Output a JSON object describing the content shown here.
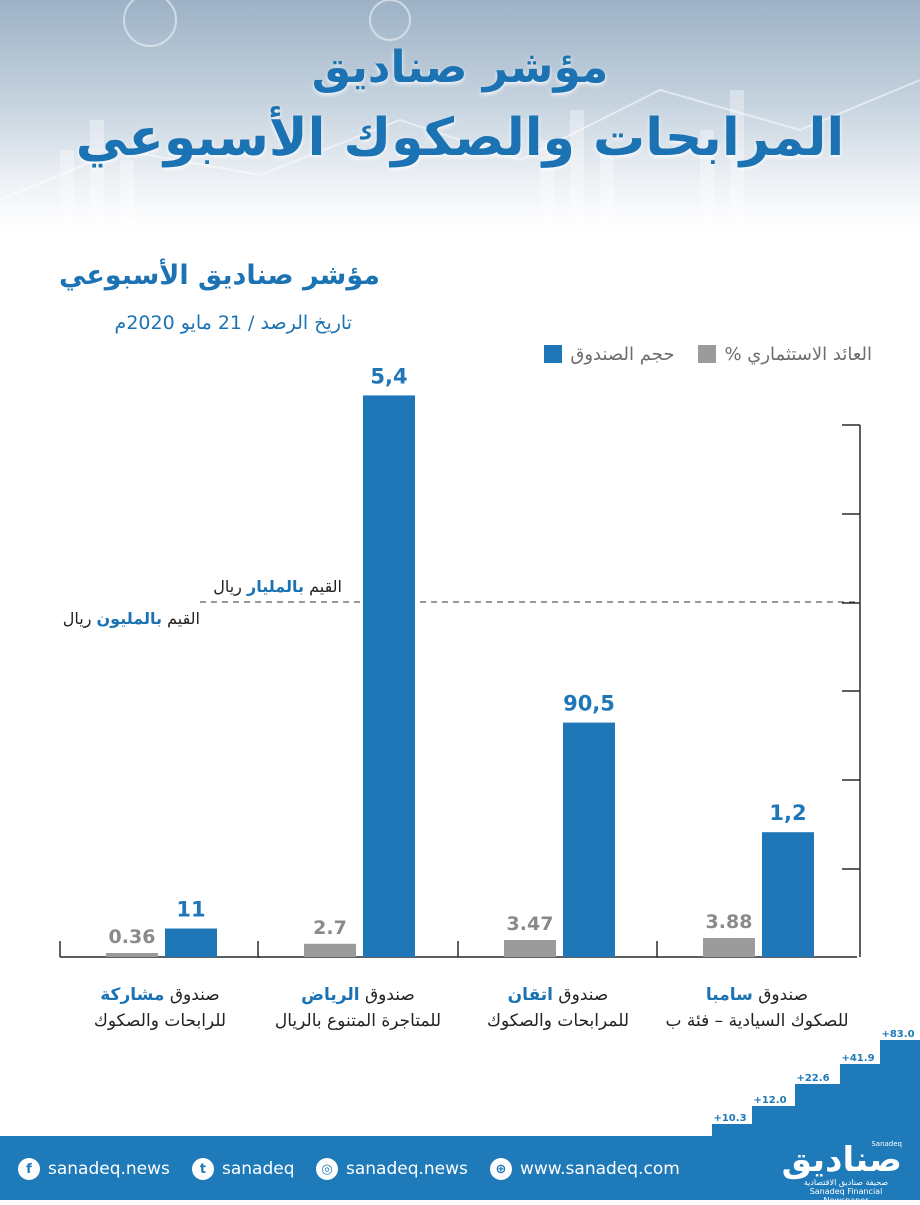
{
  "header": {
    "title_line1": "مؤشر صناديق",
    "title_line2": "المرابحات والصكوك الأسبوعي"
  },
  "subtitle": "مؤشر صناديق الأسبوعي",
  "date": "تاريخ الرصد / 21 مايو 2020م",
  "legend": {
    "fund_size": "حجم الصندوق",
    "return": "العائد الاستثماري %"
  },
  "annotations": {
    "billion_prefix": "القيم ",
    "billion_highlight": "بالمليار",
    "billion_suffix": " ريال",
    "million_prefix": "القيم ",
    "million_highlight": "بالمليون",
    "million_suffix": " ريال"
  },
  "funds": [
    {
      "prefix": "صندوق ",
      "name": "سامبا",
      "line2": "للصكوك السيادية – فئة ب"
    },
    {
      "prefix": "صندوق ",
      "name": "اتقان",
      "line2": "للمرابحات والصكوك"
    },
    {
      "prefix": "صندوق ",
      "name": "الرياض",
      "line2": "للمتاجرة المتنوع بالريال"
    },
    {
      "prefix": "صندوق ",
      "name": "مشاركة",
      "line2": "للرابحات والصكوك"
    }
  ],
  "chart_data": {
    "type": "bar",
    "categories": [
      "صندوق سامبا للصكوك السيادية – فئة ب",
      "صندوق اتقان للمرابحات والصكوك",
      "صندوق الرياض للمتاجرة المتنوع بالريال",
      "صندوق مشاركة للرابحات والصكوك"
    ],
    "series": [
      {
        "name": "حجم الصندوق",
        "values": [
          1.2,
          90.5,
          5.4,
          11
        ],
        "labels": [
          "1,2",
          "90,5",
          "5,4",
          "11"
        ],
        "units": [
          "بالمليار",
          "بالمليون",
          "بالمليار",
          "بالمليون"
        ],
        "color": "#1f77b8"
      },
      {
        "name": "العائد الاستثماري %",
        "values": [
          3.88,
          3.47,
          2.7,
          0.36
        ],
        "labels": [
          "3.88",
          "3.47",
          "2.7",
          "0.36"
        ],
        "color": "#9b9b9b"
      }
    ],
    "legend_position": "top-right",
    "grid": false,
    "colors": {
      "primary": "#1f77b8",
      "secondary": "#9b9b9b",
      "axis": "#2a2a2a",
      "label_grey": "#8a8a8a"
    }
  },
  "footer": {
    "facebook": "sanadeq.news",
    "twitter": "sanadeq",
    "instagram": "sanadeq.news",
    "website": "www.sanadeq.com",
    "logo_text": "صناديق",
    "logo_tag": "Sanadeq",
    "logo_sub_ar": "صحيفة صناديق الاقتصادية",
    "logo_sub_en": "Sanadeq Financial Newspaper",
    "growth_values": [
      "+10.3",
      "+12.0",
      "+22.6",
      "+41.9",
      "+83.0"
    ],
    "icons": [
      "facebook-icon",
      "twitter-icon",
      "instagram-icon",
      "globe-icon"
    ]
  }
}
